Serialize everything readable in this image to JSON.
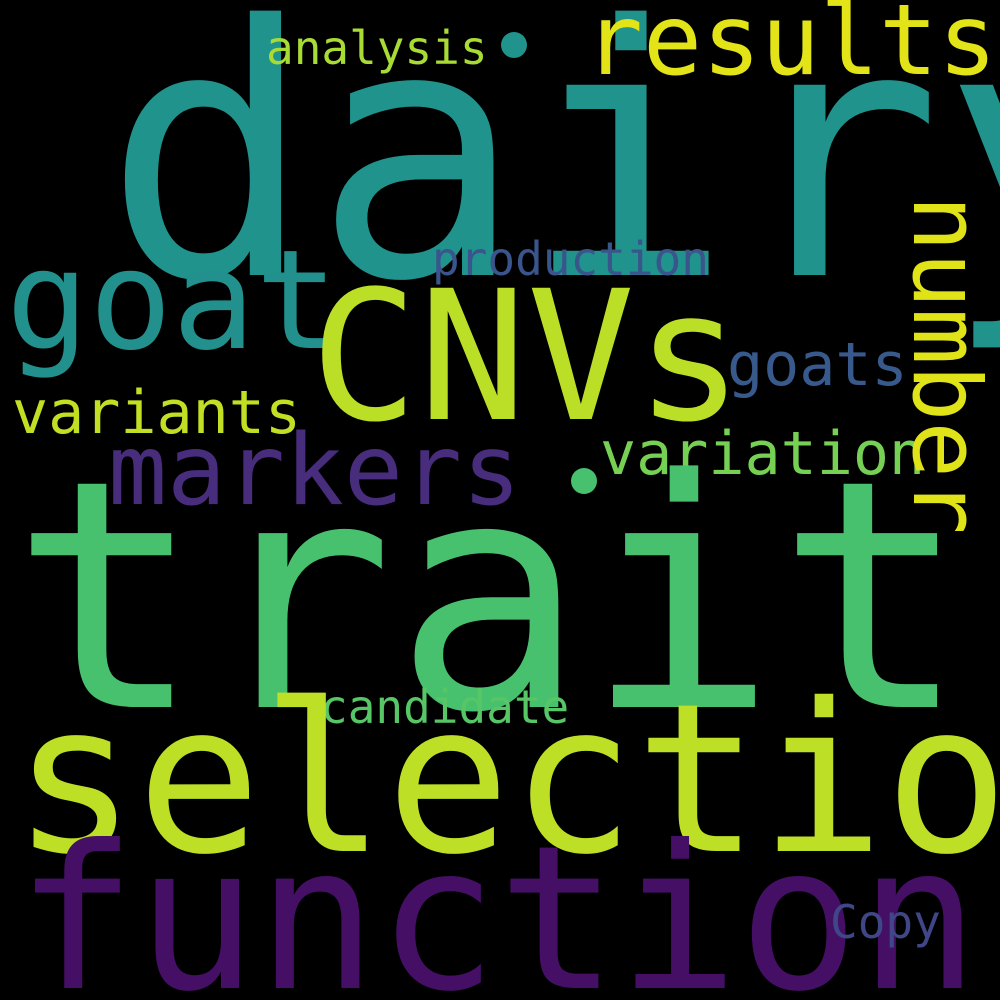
{
  "words": {
    "dairy": {
      "text": "dairy",
      "color": "#20938c"
    },
    "traits": {
      "text": "traits",
      "color": "#48c16e"
    },
    "selection": {
      "text": "selection",
      "color": "#bddf26"
    },
    "function": {
      "text": "function",
      "color": "#440f64"
    },
    "cnvs": {
      "text": "CNVs",
      "color": "#bbdf27"
    },
    "goat": {
      "text": "goat",
      "color": "#22908c"
    },
    "markers": {
      "text": "markers",
      "color": "#472d7b"
    },
    "results": {
      "text": "results",
      "color": "#e3e418"
    },
    "number": {
      "text": "number",
      "color": "#dfe318"
    },
    "variation": {
      "text": "variation",
      "color": "#75d054"
    },
    "variants": {
      "text": "variants",
      "color": "#c2df23"
    },
    "goats": {
      "text": "goats",
      "color": "#38598c"
    },
    "production": {
      "text": "production",
      "color": "#3a548c"
    },
    "analysis": {
      "text": "analysis",
      "color": "#a8db34"
    },
    "candidate": {
      "text": "candidate",
      "color": "#56c667"
    },
    "copy": {
      "text": "Copy",
      "color": "#3f4788"
    }
  },
  "dots": [
    {
      "color": "#20938c"
    },
    {
      "color": "#48c16e"
    }
  ]
}
